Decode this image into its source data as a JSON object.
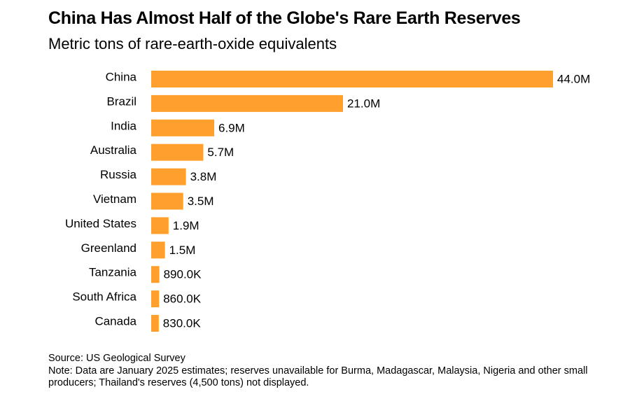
{
  "chart_data": {
    "type": "bar",
    "orientation": "horizontal",
    "title": "China Has Almost Half of the Globe's Rare Earth Reserves",
    "subtitle": "Metric tons of rare-earth-oxide equivalents",
    "categories": [
      "China",
      "Brazil",
      "India",
      "Australia",
      "Russia",
      "Vietnam",
      "United States",
      "Greenland",
      "Tanzania",
      "South Africa",
      "Canada"
    ],
    "values": [
      44000000,
      21000000,
      6900000,
      5700000,
      3800000,
      3500000,
      1900000,
      1500000,
      890000,
      860000,
      830000
    ],
    "value_labels": [
      "44.0M",
      "21.0M",
      "6.9M",
      "5.7M",
      "3.8M",
      "3.5M",
      "1.9M",
      "1.5M",
      "890.0K",
      "860.0K",
      "830.0K"
    ],
    "xlim": [
      0,
      44000000
    ],
    "bar_color": "#ff9f2d",
    "xlabel": "",
    "ylabel": ""
  },
  "footer": {
    "source": "Source: US Geological Survey",
    "note": "Note: Data are January 2025 estimates; reserves unavailable for Burma, Madagascar, Malaysia, Nigeria and other small producers; Thailand's reserves (4,500 tons) not displayed."
  }
}
